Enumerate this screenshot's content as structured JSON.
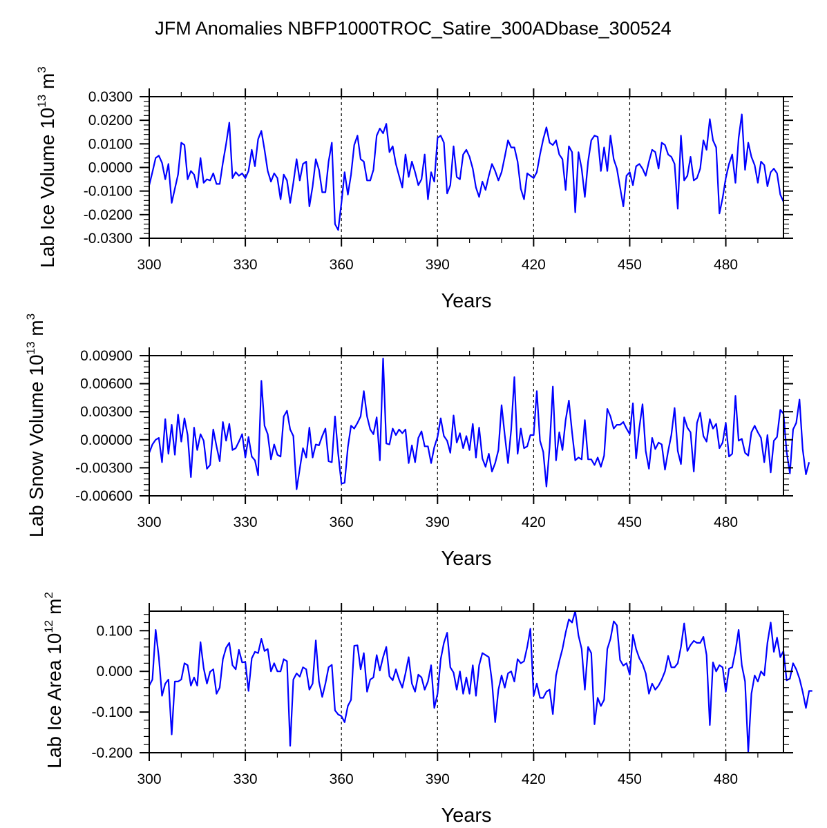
{
  "chart_data": {
    "type": "line",
    "title": "JFM Anomalies NBFP1000TROC_Satire_300ADbase_300524",
    "panels": [
      {
        "name": "ice-volume",
        "ylabel": "Lab Ice Volume 10",
        "ylabel_exponent": "13",
        "ylabel_unit": "m",
        "ylabel_unit_exponent": "3",
        "xlabel": "Years",
        "xlim": [
          300,
          498
        ],
        "ylim": [
          -0.03,
          0.03
        ],
        "xticks": [
          "300",
          "330",
          "360",
          "390",
          "420",
          "450",
          "480"
        ],
        "yticks": [
          "0.0300",
          "0.0200",
          "0.0100",
          "0.0000",
          "-0.0100",
          "-0.0200",
          "-0.0300"
        ],
        "ytick_values": [
          0.03,
          0.02,
          0.01,
          0.0,
          -0.01,
          -0.02,
          -0.03
        ],
        "reference_lines_x": [
          330,
          360,
          390,
          420,
          450,
          480
        ],
        "line_color": "#0000ff",
        "x_start": 300,
        "values": [
          -0.0075,
          -0.002,
          0.004,
          0.005,
          0.002,
          -0.005,
          0.0015,
          -0.015,
          -0.009,
          -0.003,
          0.0105,
          0.0095,
          -0.005,
          -0.0015,
          -0.003,
          -0.0085,
          0.004,
          -0.0065,
          -0.005,
          -0.0055,
          -0.0025,
          -0.007,
          -0.007,
          0.002,
          0.01,
          0.019,
          -0.0045,
          -0.002,
          -0.0035,
          -0.0025,
          -0.0045,
          -0.0015,
          0.0075,
          0.0005,
          0.012,
          0.0155,
          0.0075,
          -0.0015,
          -0.006,
          -0.0025,
          -0.0045,
          -0.0135,
          -0.003,
          -0.0055,
          -0.015,
          -0.0065,
          0.0035,
          -0.0055,
          0.0015,
          0.0025,
          -0.0165,
          -0.008,
          0.0035,
          -0.001,
          -0.0105,
          -0.0105,
          0.0025,
          0.0105,
          -0.024,
          -0.0265,
          -0.015,
          -0.002,
          -0.0115,
          -0.003,
          0.0095,
          0.0135,
          0.0035,
          0.0025,
          -0.0055,
          -0.0055,
          -0.001,
          0.0135,
          0.0165,
          0.0145,
          0.0185,
          0.0065,
          0.009,
          0.0015,
          -0.0035,
          -0.0085,
          0.0055,
          -0.004,
          0.0025,
          -0.002,
          -0.0075,
          -0.005,
          0.0055,
          -0.0135,
          -0.002,
          -0.006,
          0.0125,
          0.0135,
          0.0105,
          -0.011,
          -0.0075,
          0.009,
          -0.004,
          -0.005,
          0.0055,
          0.0075,
          0.0045,
          -0.0005,
          -0.0085,
          -0.0125,
          -0.006,
          -0.0095,
          -0.0035,
          0.0015,
          -0.0015,
          -0.0055,
          -0.002,
          0.0045,
          0.0115,
          0.0085,
          0.0085,
          0.0025,
          -0.009,
          -0.0135,
          -0.0025,
          -0.0035,
          -0.0045,
          -0.002,
          0.0055,
          0.012,
          0.017,
          0.0105,
          0.0095,
          0.0115,
          0.0055,
          0.0035,
          -0.0095,
          0.009,
          0.0065,
          -0.019,
          0.0065,
          -0.0005,
          -0.0125,
          0.0025,
          0.0115,
          0.0135,
          0.013,
          -0.0015,
          0.0085,
          -0.0015,
          0.0135,
          0.0035,
          -0.0005,
          -0.0085,
          -0.0165,
          -0.0035,
          -0.002,
          -0.0075,
          0.0005,
          0.0015,
          -0.0005,
          -0.0035,
          0.0025,
          0.0075,
          0.0065,
          -0.0005,
          0.0105,
          0.0095,
          0.0055,
          0.0045,
          0.0015,
          -0.0175,
          0.0135,
          -0.0055,
          -0.0035,
          0.0045,
          -0.0055,
          -0.0045,
          -0.0005,
          0.0115,
          0.0075,
          0.0205,
          0.0115,
          0.0085,
          -0.0195,
          -0.013,
          -0.0045,
          0.0015,
          0.0055,
          -0.0065,
          0.0125,
          0.0225,
          -0.001,
          0.0105,
          0.0045,
          0.001,
          -0.0065,
          0.0025,
          0.001,
          -0.008,
          -0.002,
          -0.0005,
          -0.0025,
          -0.0115,
          -0.0145
        ]
      },
      {
        "name": "snow-volume",
        "ylabel": "Lab Snow Volume 10",
        "ylabel_exponent": "13",
        "ylabel_unit": "m",
        "ylabel_unit_exponent": "3",
        "xlabel": "Years",
        "xlim": [
          300,
          498
        ],
        "ylim": [
          -0.006,
          0.009
        ],
        "xticks": [
          "300",
          "330",
          "360",
          "390",
          "420",
          "450",
          "480"
        ],
        "yticks": [
          "0.00900",
          "0.00600",
          "0.00300",
          "0.00000",
          "-0.00300",
          "-0.00600"
        ],
        "ytick_values": [
          0.009,
          0.006,
          0.003,
          0.0,
          -0.003,
          -0.006
        ],
        "reference_lines_x": [
          330,
          360,
          390,
          420,
          450,
          480
        ],
        "line_color": "#0000ff",
        "x_start": 300,
        "values": [
          -0.0014,
          -0.0005,
          0.0,
          0.0002,
          -0.0024,
          0.0022,
          -0.0015,
          0.0016,
          -0.0016,
          0.0027,
          -0.0002,
          0.0023,
          0.0005,
          -0.004,
          0.0013,
          -0.0011,
          0.0006,
          -0.0001,
          -0.0031,
          -0.0027,
          0.0011,
          -0.0007,
          -0.0023,
          0.0019,
          -0.0001,
          0.0017,
          -0.0011,
          -0.0009,
          -0.0002,
          0.0006,
          -0.0019,
          0.0003,
          -0.0018,
          -0.0022,
          -0.0038,
          0.0063,
          0.0015,
          0.0006,
          -0.0021,
          -0.0005,
          -0.0016,
          -0.0018,
          0.0025,
          0.0031,
          0.0011,
          0.0004,
          -0.0053,
          -0.0031,
          -0.0009,
          -0.0019,
          0.0013,
          -0.0019,
          -0.0005,
          -0.0006,
          0.0004,
          0.0012,
          -0.0023,
          -0.0024,
          0.0025,
          -0.0015,
          -0.0047,
          -0.0046,
          -0.0008,
          0.0015,
          0.0012,
          0.0018,
          0.0025,
          0.0052,
          0.0025,
          0.0011,
          0.0006,
          0.0024,
          -0.0022,
          0.0087,
          -0.0004,
          -0.0005,
          0.0012,
          0.0005,
          0.0011,
          0.0007,
          0.0011,
          -0.0025,
          -0.0006,
          -0.0024,
          0.0002,
          0.0009,
          -0.0007,
          -0.0007,
          -0.0025,
          -0.0008,
          0.0003,
          0.0023,
          0.0004,
          -0.0001,
          -0.0014,
          0.0026,
          -0.0003,
          0.0007,
          -0.0009,
          0.0004,
          -0.0011,
          0.0017,
          -0.0019,
          0.0013,
          -0.002,
          -0.0029,
          -0.0015,
          -0.0034,
          -0.0025,
          -0.0011,
          0.0037,
          0.0005,
          -0.0025,
          0.0011,
          0.0067,
          -0.0015,
          0.0012,
          -0.0009,
          -0.0007,
          0.0005,
          0.0005,
          0.0052,
          -0.0001,
          -0.0013,
          -0.005,
          -0.0008,
          0.0057,
          -0.0022,
          0.0008,
          -0.0011,
          0.0021,
          0.0042,
          0.0008,
          -0.0022,
          -0.0019,
          -0.0021,
          0.0021,
          -0.0021,
          -0.0021,
          -0.0027,
          -0.0019,
          -0.0029,
          -0.0017,
          0.0033,
          0.0025,
          0.0012,
          0.0016,
          0.0016,
          0.0019,
          0.0012,
          0.0006,
          0.0039,
          -0.002,
          0.0013,
          0.0038,
          -0.0012,
          -0.0031,
          0.0002,
          -0.001,
          -0.0003,
          -0.0005,
          -0.0032,
          -0.0012,
          0.0005,
          0.0034,
          -0.0012,
          -0.0026,
          0.0024,
          0.0013,
          0.0008,
          -0.0034,
          0.0018,
          0.0029,
          0.0004,
          -0.0002,
          0.0022,
          0.0012,
          0.0017,
          -0.0009,
          -0.0003,
          0.0018,
          -0.0018,
          -0.0015,
          0.0047,
          -0.0001,
          0.0001,
          -0.0014,
          -0.0017,
          0.0008,
          0.0015,
          0.0008,
          0.0002,
          -0.0024,
          0.0005,
          -0.0035,
          -0.0001,
          0.0003,
          0.0032,
          0.0028,
          -0.0013,
          -0.0036,
          0.0011,
          0.0018,
          0.0043,
          -0.001,
          -0.0037,
          -0.0024
        ]
      },
      {
        "name": "ice-area",
        "ylabel": "Lab Ice Area 10",
        "ylabel_exponent": "12",
        "ylabel_unit": "m",
        "ylabel_unit_exponent": "2",
        "xlabel": "Years",
        "xlim": [
          300,
          498
        ],
        "ylim": [
          -0.2,
          0.148
        ],
        "xticks": [
          "300",
          "330",
          "360",
          "390",
          "420",
          "450",
          "480"
        ],
        "yticks": [
          "0.100",
          "0.000",
          "-0.100",
          "-0.200"
        ],
        "ytick_values": [
          0.1,
          0.0,
          -0.1,
          -0.2
        ],
        "reference_lines_x": [
          330,
          360,
          390,
          420,
          450,
          480
        ],
        "line_color": "#0000ff",
        "x_start": 300,
        "values": [
          -0.035,
          -0.02,
          0.102,
          0.035,
          -0.06,
          -0.03,
          -0.02,
          -0.155,
          -0.025,
          -0.025,
          -0.02,
          0.02,
          0.015,
          -0.035,
          -0.015,
          -0.035,
          0.072,
          0.008,
          -0.03,
          -0.001,
          0.005,
          -0.055,
          -0.04,
          0.03,
          0.058,
          0.07,
          0.015,
          0.005,
          0.053,
          0.022,
          0.023,
          -0.048,
          0.032,
          0.048,
          0.045,
          0.08,
          0.05,
          0.055,
          0.0,
          0.02,
          0.0,
          0.0,
          0.03,
          0.025,
          -0.183,
          -0.02,
          -0.005,
          -0.013,
          0.01,
          0.005,
          -0.045,
          -0.03,
          0.076,
          -0.025,
          -0.063,
          -0.03,
          0.01,
          0.016,
          -0.096,
          -0.106,
          -0.11,
          -0.125,
          -0.085,
          -0.07,
          0.063,
          0.064,
          0.005,
          0.045,
          -0.05,
          -0.02,
          -0.015,
          0.04,
          0.002,
          0.035,
          0.06,
          -0.012,
          -0.022,
          0.005,
          -0.02,
          -0.04,
          -0.005,
          0.035,
          -0.03,
          -0.05,
          -0.008,
          -0.015,
          -0.045,
          -0.025,
          0.015,
          -0.09,
          -0.055,
          0.03,
          0.07,
          0.095,
          0.01,
          -0.003,
          -0.045,
          0.0,
          -0.055,
          -0.015,
          -0.055,
          0.015,
          -0.06,
          0.015,
          0.045,
          0.04,
          0.035,
          -0.025,
          -0.125,
          -0.045,
          -0.01,
          -0.04,
          -0.005,
          0.0,
          -0.025,
          0.03,
          0.02,
          0.025,
          0.06,
          0.105,
          -0.06,
          -0.03,
          -0.065,
          -0.065,
          -0.05,
          -0.045,
          -0.105,
          -0.01,
          0.025,
          0.055,
          0.095,
          0.128,
          0.12,
          0.148,
          0.088,
          0.055,
          -0.045,
          0.06,
          0.045,
          -0.13,
          -0.065,
          -0.085,
          -0.07,
          0.055,
          0.08,
          0.123,
          0.113,
          0.028,
          0.014,
          0.02,
          -0.008,
          0.09,
          0.055,
          0.032,
          0.018,
          -0.005,
          -0.055,
          -0.03,
          -0.045,
          -0.035,
          -0.02,
          0.0,
          0.038,
          0.01,
          0.01,
          0.02,
          0.06,
          0.118,
          0.05,
          0.065,
          0.075,
          0.07,
          0.07,
          0.085,
          0.04,
          -0.132,
          0.022,
          0.0,
          0.015,
          0.01,
          -0.05,
          0.007,
          0.01,
          0.05,
          0.102,
          0.015,
          -0.025,
          -0.198,
          -0.055,
          -0.01,
          -0.025,
          0.0,
          -0.01,
          0.07,
          0.12,
          0.048,
          0.083,
          0.035,
          0.05,
          -0.022,
          -0.018,
          0.02,
          0.005,
          -0.018,
          -0.05,
          -0.09,
          -0.048,
          -0.048
        ]
      }
    ]
  }
}
